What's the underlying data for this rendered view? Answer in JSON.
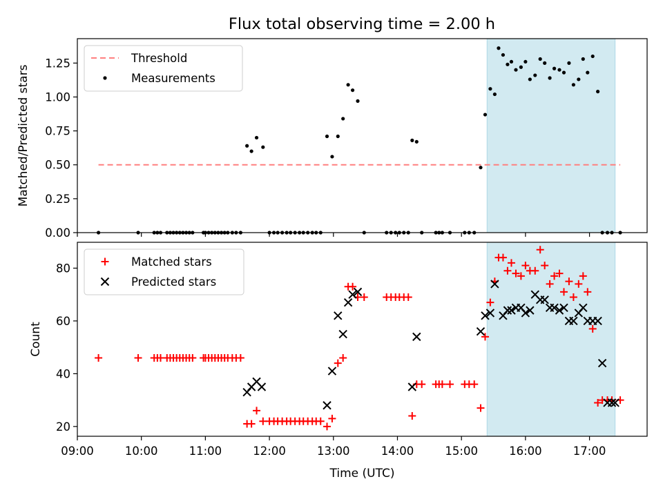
{
  "title": "Flux total observing time = 2.00 h",
  "colors": {
    "threshold": "#ff7f7f",
    "measurements": "#000000",
    "matched": "#ff0000",
    "predicted": "#000000",
    "highlight": "#add8e6"
  },
  "chart_data": [
    {
      "type": "scatter",
      "ylabel": "Matched/Predicted stars",
      "xlim": [
        9.0,
        17.9
      ],
      "ylim": [
        0.0,
        1.43
      ],
      "yticks": [
        0.0,
        0.25,
        0.5,
        0.75,
        1.0,
        1.25
      ],
      "ytick_labels": [
        "0.00",
        "0.25",
        "0.50",
        "0.75",
        "1.00",
        "1.25"
      ],
      "legend_position": "top-left",
      "highlight_span": [
        15.4,
        17.4
      ],
      "series": [
        {
          "name": "Threshold",
          "style": "dashed-line",
          "x": [
            9.33,
            17.48
          ],
          "y": [
            0.5,
            0.5
          ]
        },
        {
          "name": "Measurements",
          "style": "dot",
          "x": [
            9.33,
            9.95,
            10.2,
            10.25,
            10.3,
            10.4,
            10.45,
            10.5,
            10.55,
            10.6,
            10.65,
            10.7,
            10.75,
            10.8,
            10.97,
            11.0,
            11.05,
            11.1,
            11.15,
            11.2,
            11.25,
            11.3,
            11.35,
            11.42,
            11.48,
            11.55,
            11.65,
            11.72,
            11.8,
            11.9,
            12.0,
            12.07,
            12.13,
            12.2,
            12.27,
            12.33,
            12.4,
            12.47,
            12.53,
            12.6,
            12.67,
            12.73,
            12.8,
            12.9,
            12.98,
            13.07,
            13.15,
            13.23,
            13.3,
            13.38,
            13.48,
            13.83,
            13.9,
            13.97,
            14.03,
            14.1,
            14.17,
            14.23,
            14.3,
            14.38,
            14.6,
            14.65,
            14.7,
            14.82,
            15.05,
            15.12,
            15.2,
            15.3,
            15.37,
            15.45,
            15.52,
            15.58,
            15.65,
            15.72,
            15.78,
            15.85,
            15.93,
            16.0,
            16.07,
            16.15,
            16.23,
            16.3,
            16.38,
            16.45,
            16.53,
            16.6,
            16.68,
            16.75,
            16.83,
            16.9,
            16.97,
            17.05,
            17.13,
            17.2,
            17.28,
            17.35,
            17.48
          ],
          "y": [
            0.0,
            0.0,
            0.0,
            0.0,
            0.0,
            0.0,
            0.0,
            0.0,
            0.0,
            0.0,
            0.0,
            0.0,
            0.0,
            0.0,
            0.0,
            0.0,
            0.0,
            0.0,
            0.0,
            0.0,
            0.0,
            0.0,
            0.0,
            0.0,
            0.0,
            0.0,
            0.64,
            0.6,
            0.7,
            0.63,
            0.0,
            0.0,
            0.0,
            0.0,
            0.0,
            0.0,
            0.0,
            0.0,
            0.0,
            0.0,
            0.0,
            0.0,
            0.0,
            0.71,
            0.56,
            0.71,
            0.84,
            1.09,
            1.05,
            0.97,
            0.0,
            0.0,
            0.0,
            0.0,
            0.0,
            0.0,
            0.0,
            0.68,
            0.67,
            0.0,
            0.0,
            0.0,
            0.0,
            0.0,
            0.0,
            0.0,
            0.0,
            0.48,
            0.87,
            1.06,
            1.02,
            1.36,
            1.31,
            1.24,
            1.26,
            1.2,
            1.22,
            1.26,
            1.13,
            1.16,
            1.28,
            1.25,
            1.14,
            1.21,
            1.2,
            1.18,
            1.25,
            1.09,
            1.13,
            1.28,
            1.18,
            1.3,
            1.04,
            0.0,
            0.0,
            0.0,
            0.0
          ]
        }
      ]
    },
    {
      "type": "scatter",
      "xlabel": "Time (UTC)",
      "ylabel": "Count",
      "xlim": [
        9.0,
        17.9
      ],
      "ylim": [
        16.3,
        89.8
      ],
      "xticks": [
        9,
        10,
        11,
        12,
        13,
        14,
        15,
        16,
        17
      ],
      "xtick_labels": [
        "09:00",
        "10:00",
        "11:00",
        "12:00",
        "13:00",
        "14:00",
        "15:00",
        "16:00",
        "17:00"
      ],
      "yticks": [
        20,
        40,
        60,
        80
      ],
      "ytick_labels": [
        "20",
        "40",
        "60",
        "80"
      ],
      "legend_position": "top-left",
      "highlight_span": [
        15.4,
        17.4
      ],
      "series": [
        {
          "name": "Matched stars",
          "style": "plus",
          "x": [
            9.33,
            9.95,
            10.2,
            10.25,
            10.3,
            10.4,
            10.45,
            10.5,
            10.55,
            10.6,
            10.65,
            10.7,
            10.75,
            10.8,
            10.97,
            11.0,
            11.05,
            11.1,
            11.15,
            11.2,
            11.25,
            11.3,
            11.35,
            11.42,
            11.48,
            11.55,
            11.65,
            11.72,
            11.8,
            11.9,
            12.0,
            12.07,
            12.13,
            12.2,
            12.27,
            12.33,
            12.4,
            12.47,
            12.53,
            12.6,
            12.67,
            12.73,
            12.8,
            12.9,
            12.98,
            13.07,
            13.15,
            13.23,
            13.3,
            13.38,
            13.48,
            13.83,
            13.9,
            13.97,
            14.03,
            14.1,
            14.17,
            14.23,
            14.3,
            14.38,
            14.6,
            14.65,
            14.7,
            14.82,
            15.05,
            15.12,
            15.2,
            15.3,
            15.37,
            15.45,
            15.52,
            15.58,
            15.65,
            15.72,
            15.78,
            15.85,
            15.93,
            16.0,
            16.07,
            16.15,
            16.23,
            16.3,
            16.38,
            16.45,
            16.53,
            16.6,
            16.68,
            16.75,
            16.83,
            16.9,
            16.97,
            17.05,
            17.13,
            17.2,
            17.28,
            17.35,
            17.48
          ],
          "y": [
            46,
            46,
            46,
            46,
            46,
            46,
            46,
            46,
            46,
            46,
            46,
            46,
            46,
            46,
            46,
            46,
            46,
            46,
            46,
            46,
            46,
            46,
            46,
            46,
            46,
            46,
            21,
            21,
            26,
            22,
            22,
            22,
            22,
            22,
            22,
            22,
            22,
            22,
            22,
            22,
            22,
            22,
            22,
            20,
            23,
            44,
            46,
            73,
            73,
            69,
            69,
            69,
            69,
            69,
            69,
            69,
            69,
            24,
            36,
            36,
            36,
            36,
            36,
            36,
            36,
            36,
            36,
            27,
            54,
            67,
            75,
            84,
            84,
            79,
            82,
            78,
            77,
            81,
            79,
            79,
            87,
            81,
            74,
            77,
            78,
            71,
            75,
            69,
            74,
            77,
            71,
            57,
            29,
            30,
            30,
            30,
            30
          ]
        },
        {
          "name": "Predicted stars",
          "style": "x",
          "x": [
            11.65,
            11.72,
            11.8,
            11.88,
            12.9,
            12.98,
            13.07,
            13.15,
            13.23,
            13.3,
            13.38,
            14.23,
            14.3,
            15.3,
            15.37,
            15.45,
            15.52,
            15.65,
            15.72,
            15.78,
            15.85,
            15.93,
            16.0,
            16.07,
            16.15,
            16.23,
            16.3,
            16.38,
            16.45,
            16.53,
            16.6,
            16.68,
            16.75,
            16.83,
            16.9,
            16.97,
            17.05,
            17.13,
            17.2,
            17.28,
            17.35,
            17.4
          ],
          "y": [
            33,
            35,
            37,
            35,
            28,
            41,
            62,
            55,
            67,
            70,
            71,
            35,
            54,
            56,
            62,
            63,
            74,
            62,
            64,
            64,
            65,
            65,
            63,
            64,
            70,
            68,
            68,
            65,
            65,
            64,
            65,
            60,
            60,
            63,
            65,
            60,
            60,
            60,
            44,
            29,
            29,
            29
          ]
        }
      ]
    }
  ]
}
